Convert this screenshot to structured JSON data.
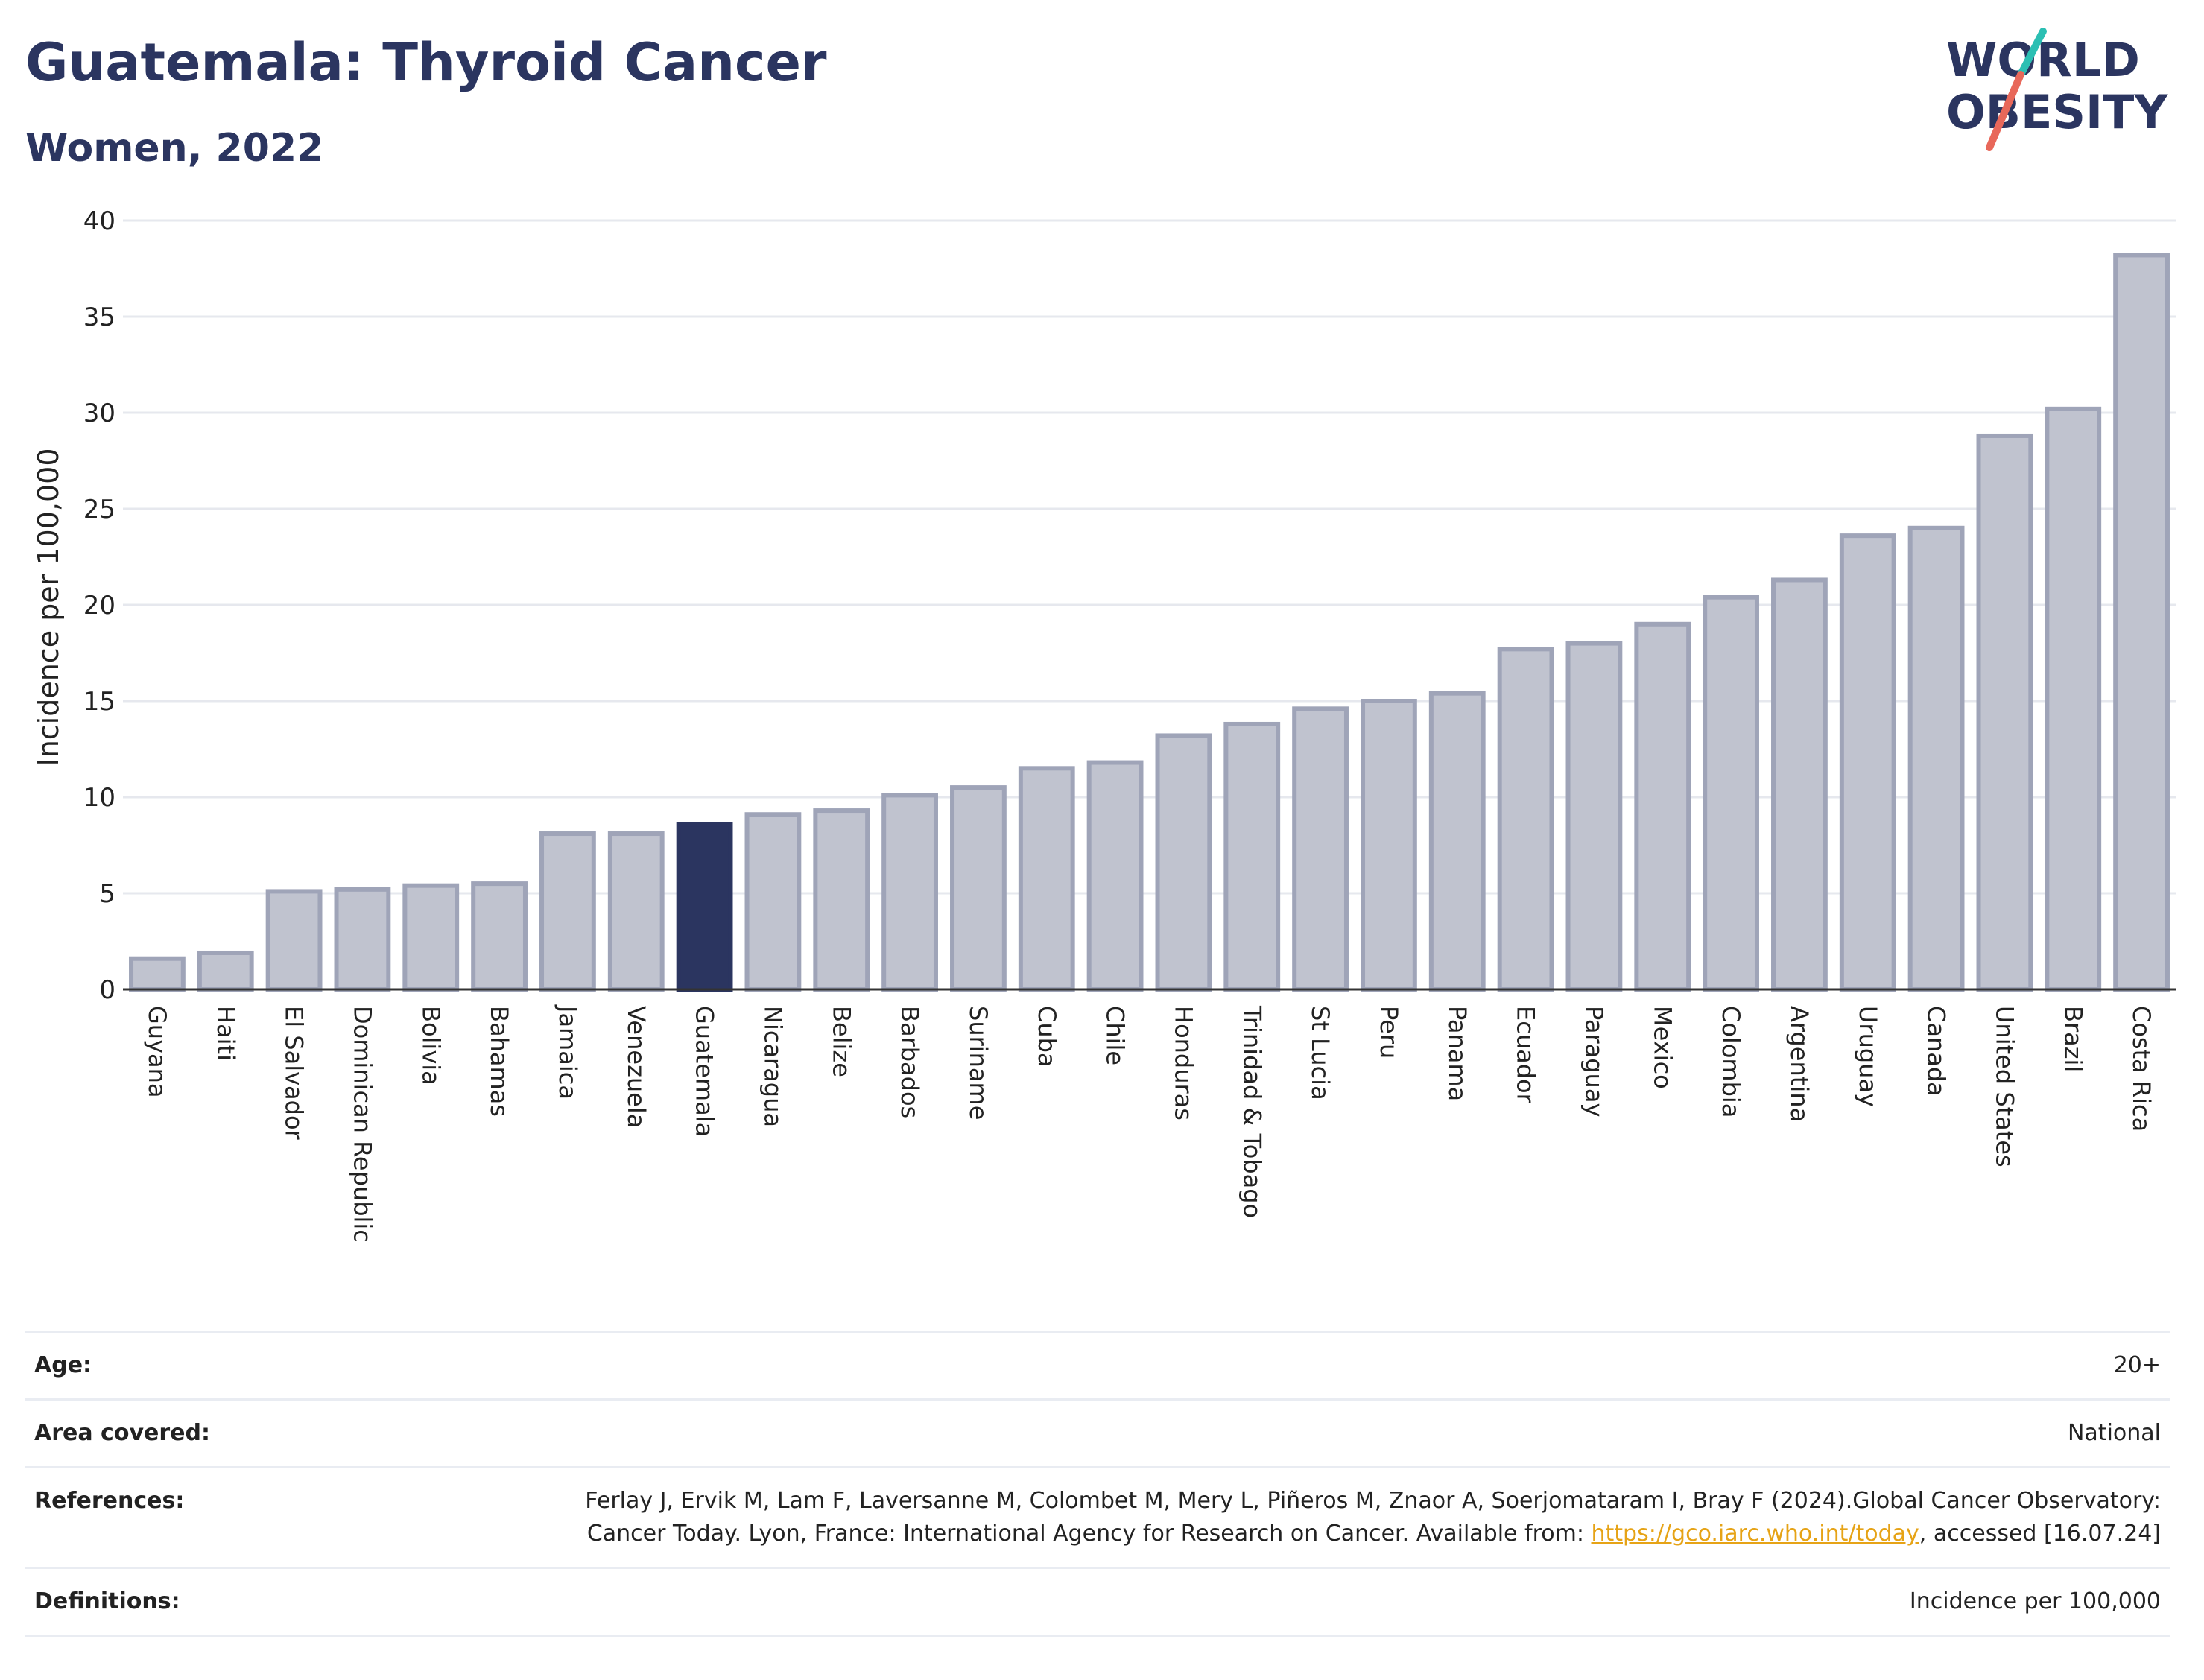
{
  "header": {
    "title": "Guatemala: Thyroid Cancer",
    "subtitle": "Women, 2022"
  },
  "logo": {
    "line1": "WORLD",
    "line2": "OBESITY",
    "accent_colors": [
      "#2bbfb3",
      "#e8685a"
    ]
  },
  "chart_data": {
    "type": "bar",
    "ylabel": "Incidence per 100,000",
    "xlabel": "",
    "ylim": [
      0,
      40
    ],
    "yticks": [
      0,
      5,
      10,
      15,
      20,
      25,
      30,
      35,
      40
    ],
    "grid": true,
    "legend": "none",
    "highlight": "Guatemala",
    "colors": {
      "bar": "#c0c3cf",
      "bar_border": "#9fa4b8",
      "highlight": "#2b3560"
    },
    "categories": [
      "Guyana",
      "Haiti",
      "El Salvador",
      "Dominican Republic",
      "Bolivia",
      "Bahamas",
      "Jamaica",
      "Venezuela",
      "Guatemala",
      "Nicaragua",
      "Belize",
      "Barbados",
      "Suriname",
      "Cuba",
      "Chile",
      "Honduras",
      "Trinidad & Tobago",
      "St Lucia",
      "Peru",
      "Panama",
      "Ecuador",
      "Paraguay",
      "Mexico",
      "Colombia",
      "Argentina",
      "Uruguay",
      "Canada",
      "United States",
      "Brazil",
      "Costa Rica"
    ],
    "values": [
      1.6,
      1.9,
      5.1,
      5.2,
      5.4,
      5.5,
      8.1,
      8.1,
      8.6,
      9.1,
      9.3,
      10.1,
      10.5,
      11.5,
      11.8,
      13.2,
      13.8,
      14.6,
      15.0,
      15.4,
      17.7,
      18.0,
      19.0,
      20.4,
      21.3,
      23.6,
      24.0,
      28.8,
      30.2,
      38.2
    ]
  },
  "meta": {
    "age_label": "Age:",
    "age_value": "20+",
    "area_label": "Area covered:",
    "area_value": "National",
    "references_label": "References:",
    "references_text_1": "Ferlay J, Ervik M, Lam F, Laversanne M, Colombet M, Mery L, Piñeros M, Znaor A, Soerjomataram I, Bray F (2024).Global Cancer Observatory: Cancer Today. Lyon, France: International Agency for Research on Cancer. Available from: ",
    "references_link": "https://gco.iarc.who.int/today",
    "references_text_2": ", accessed [16.07.24]",
    "definitions_label": "Definitions:",
    "definitions_value": "Incidence per 100,000"
  }
}
